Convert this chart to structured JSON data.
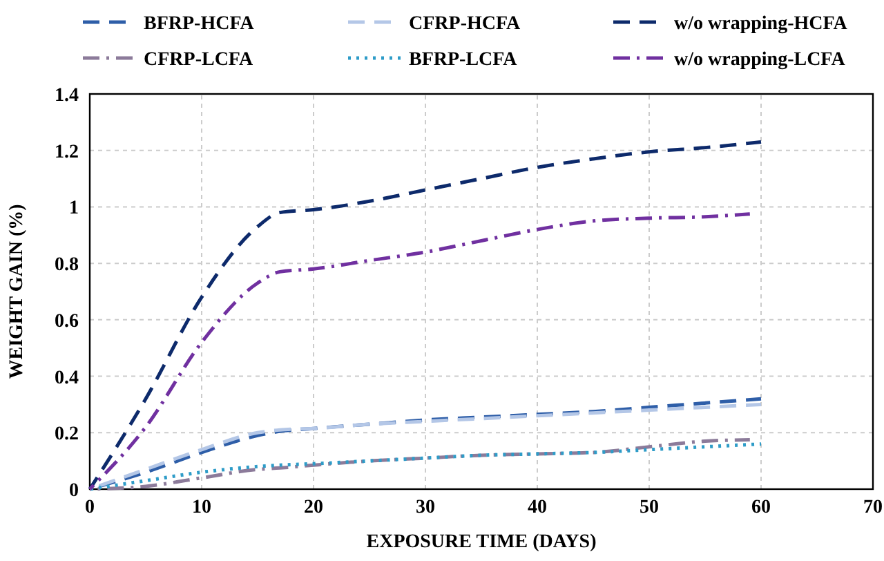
{
  "chart_data": {
    "type": "line",
    "xlabel": "EXPOSURE TIME (DAYS)",
    "ylabel": "WEIGHT GAIN (%)",
    "x": [
      0,
      5,
      10,
      15,
      17,
      20,
      25,
      30,
      35,
      40,
      45,
      50,
      55,
      60
    ],
    "series": [
      {
        "name": "BFRP-HCFA",
        "color": "#2e5ea8",
        "line_style": "dashed",
        "values": [
          0,
          0.06,
          0.13,
          0.19,
          0.205,
          0.215,
          0.23,
          0.245,
          0.255,
          0.265,
          0.275,
          0.29,
          0.305,
          0.32
        ]
      },
      {
        "name": "CFRP-HCFA",
        "color": "#b4c7e7",
        "line_style": "dashed",
        "values": [
          0,
          0.07,
          0.14,
          0.2,
          0.21,
          0.215,
          0.23,
          0.24,
          0.25,
          0.26,
          0.27,
          0.28,
          0.29,
          0.3
        ]
      },
      {
        "name": "w/o wrapping-HCFA",
        "color": "#0d2a6b",
        "line_style": "dashed",
        "values": [
          0,
          0.32,
          0.68,
          0.93,
          0.98,
          0.99,
          1.02,
          1.06,
          1.1,
          1.14,
          1.17,
          1.195,
          1.21,
          1.23
        ]
      },
      {
        "name": "CFRP-LCFA",
        "color": "#8c7b9a",
        "line_style": "dashdot",
        "x": [
          0,
          5,
          10,
          15,
          17,
          20,
          25,
          30,
          35,
          40,
          45,
          50,
          55,
          59
        ],
        "values": [
          0,
          0.01,
          0.04,
          0.07,
          0.075,
          0.085,
          0.1,
          0.11,
          0.12,
          0.125,
          0.13,
          0.15,
          0.17,
          0.175
        ]
      },
      {
        "name": "BFRP-LCFA",
        "color": "#2e9cc8",
        "line_style": "dotted",
        "values": [
          0,
          0.03,
          0.06,
          0.08,
          0.085,
          0.09,
          0.1,
          0.11,
          0.12,
          0.125,
          0.13,
          0.14,
          0.15,
          0.16
        ]
      },
      {
        "name": "w/o wrapping-LCFA",
        "color": "#7030a0",
        "line_style": "dashdot",
        "x": [
          0,
          5,
          10,
          15,
          17,
          20,
          25,
          30,
          35,
          40,
          45,
          50,
          55,
          59
        ],
        "values": [
          0,
          0.22,
          0.52,
          0.73,
          0.77,
          0.78,
          0.81,
          0.84,
          0.88,
          0.92,
          0.95,
          0.96,
          0.965,
          0.975
        ]
      }
    ],
    "xlim": [
      0,
      70
    ],
    "xticks": [
      0,
      10,
      20,
      30,
      40,
      50,
      60,
      70
    ],
    "ylim": [
      0,
      1.4
    ],
    "yticks": [
      0,
      0.2,
      0.4,
      0.6,
      0.8,
      1,
      1.2,
      1.4
    ],
    "grid": true,
    "legend": "top",
    "marker": "none"
  }
}
